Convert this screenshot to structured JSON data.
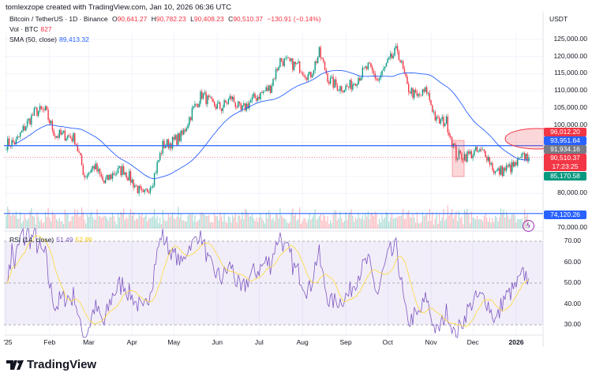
{
  "credit": "tomlexzope created with TradingView.com, Jan 10, 2026 06:36 UTC",
  "legend": {
    "symbol": "Bitcoin / TetherUS · 1D · Binance",
    "o_label": "O",
    "o": "90,641.27",
    "h_label": "H",
    "h": "90,782.23",
    "l_label": "L",
    "l": "90,408.23",
    "c_label": "C",
    "c": "90,510.37",
    "change": "−130.91 (−0.14%)",
    "vol_label": "Vol · BTC",
    "vol": "827",
    "sma_label": "SMA (50, close)",
    "sma": "89,413.32",
    "rsi_label": "RSI (14, close)",
    "rsi": "51.49",
    "rsi_ma": "52.99"
  },
  "currency": "USDT",
  "price_axis": [
    "125,000.00",
    "120,000.00",
    "115,000.00",
    "110,000.00",
    "105,000.00",
    "100,000.00",
    "80,000.00",
    "70,000.00"
  ],
  "price_tags": [
    {
      "text": "96,012.20",
      "color": "#f23645",
      "value": 96012.2
    },
    {
      "text": "93,951.64",
      "color": "#2962ff",
      "value": 93951.64
    },
    {
      "text": "91,934.16",
      "color": "#787b86",
      "value": 91934.16
    },
    {
      "text": "90,510.37",
      "sub": "17:23:25",
      "color": "#f23645",
      "value": 90510.37
    },
    {
      "text": "85,170.58",
      "color": "#089981",
      "value": 85170.58
    },
    {
      "text": "74,120.26",
      "color": "#2962ff",
      "value": 74120.26
    }
  ],
  "rsi_axis": [
    "70.00",
    "60.00",
    "50.00",
    "40.00",
    "30.00"
  ],
  "time_axis": [
    "'25",
    "Feb",
    "Mar",
    "Apr",
    "May",
    "Jun",
    "Jul",
    "Aug",
    "Sep",
    "Oct",
    "Nov",
    "Dec",
    "2026"
  ],
  "colors": {
    "up": "#089981",
    "down": "#f23645",
    "sma": "#2962ff",
    "rsi": "#7e57c2",
    "rsi_ma": "#fdd835",
    "hline": "#2962ff"
  },
  "brand": "TradingView",
  "chart_data": {
    "type": "candlestick",
    "title": "Bitcoin / TetherUS · 1D · Binance",
    "weekly_closes_x": [
      "2025-01-01",
      "2025-01-08",
      "2025-01-15",
      "2025-01-22",
      "2025-01-29",
      "2025-02-05",
      "2025-02-12",
      "2025-02-19",
      "2025-02-26",
      "2025-03-05",
      "2025-03-12",
      "2025-03-19",
      "2025-03-26",
      "2025-04-02",
      "2025-04-09",
      "2025-04-16",
      "2025-04-23",
      "2025-04-30",
      "2025-05-07",
      "2025-05-14",
      "2025-05-21",
      "2025-05-28",
      "2025-06-04",
      "2025-06-11",
      "2025-06-18",
      "2025-06-25",
      "2025-07-02",
      "2025-07-09",
      "2025-07-16",
      "2025-07-23",
      "2025-07-30",
      "2025-08-06",
      "2025-08-13",
      "2025-08-20",
      "2025-08-27",
      "2025-09-03",
      "2025-09-10",
      "2025-09-17",
      "2025-09-24",
      "2025-10-01",
      "2025-10-08",
      "2025-10-15",
      "2025-10-22",
      "2025-10-29",
      "2025-11-05",
      "2025-11-12",
      "2025-11-19",
      "2025-11-26",
      "2025-12-03",
      "2025-12-10",
      "2025-12-17",
      "2025-12-24",
      "2025-12-31",
      "2026-01-07",
      "2026-01-10"
    ],
    "weekly_closes_y": [
      94500,
      95000,
      100000,
      104000,
      104000,
      97000,
      97000,
      96000,
      85000,
      88000,
      83000,
      86000,
      87000,
      83000,
      79000,
      84000,
      94000,
      95000,
      97000,
      104000,
      109000,
      106000,
      105000,
      108000,
      104000,
      107000,
      109000,
      111000,
      119000,
      118000,
      117000,
      114000,
      121000,
      113000,
      111000,
      111000,
      114000,
      117000,
      113000,
      118000,
      122000,
      111000,
      108000,
      110000,
      101000,
      101000,
      91000,
      91000,
      92000,
      92000,
      86000,
      87000,
      88000,
      91000,
      90510
    ],
    "y_range": [
      70000,
      128000
    ],
    "horizontal_lines": [
      93951.64,
      74120.26
    ],
    "rsi_levels": [
      70,
      50,
      30
    ],
    "rsi_range": [
      25,
      75
    ],
    "grid": true
  }
}
